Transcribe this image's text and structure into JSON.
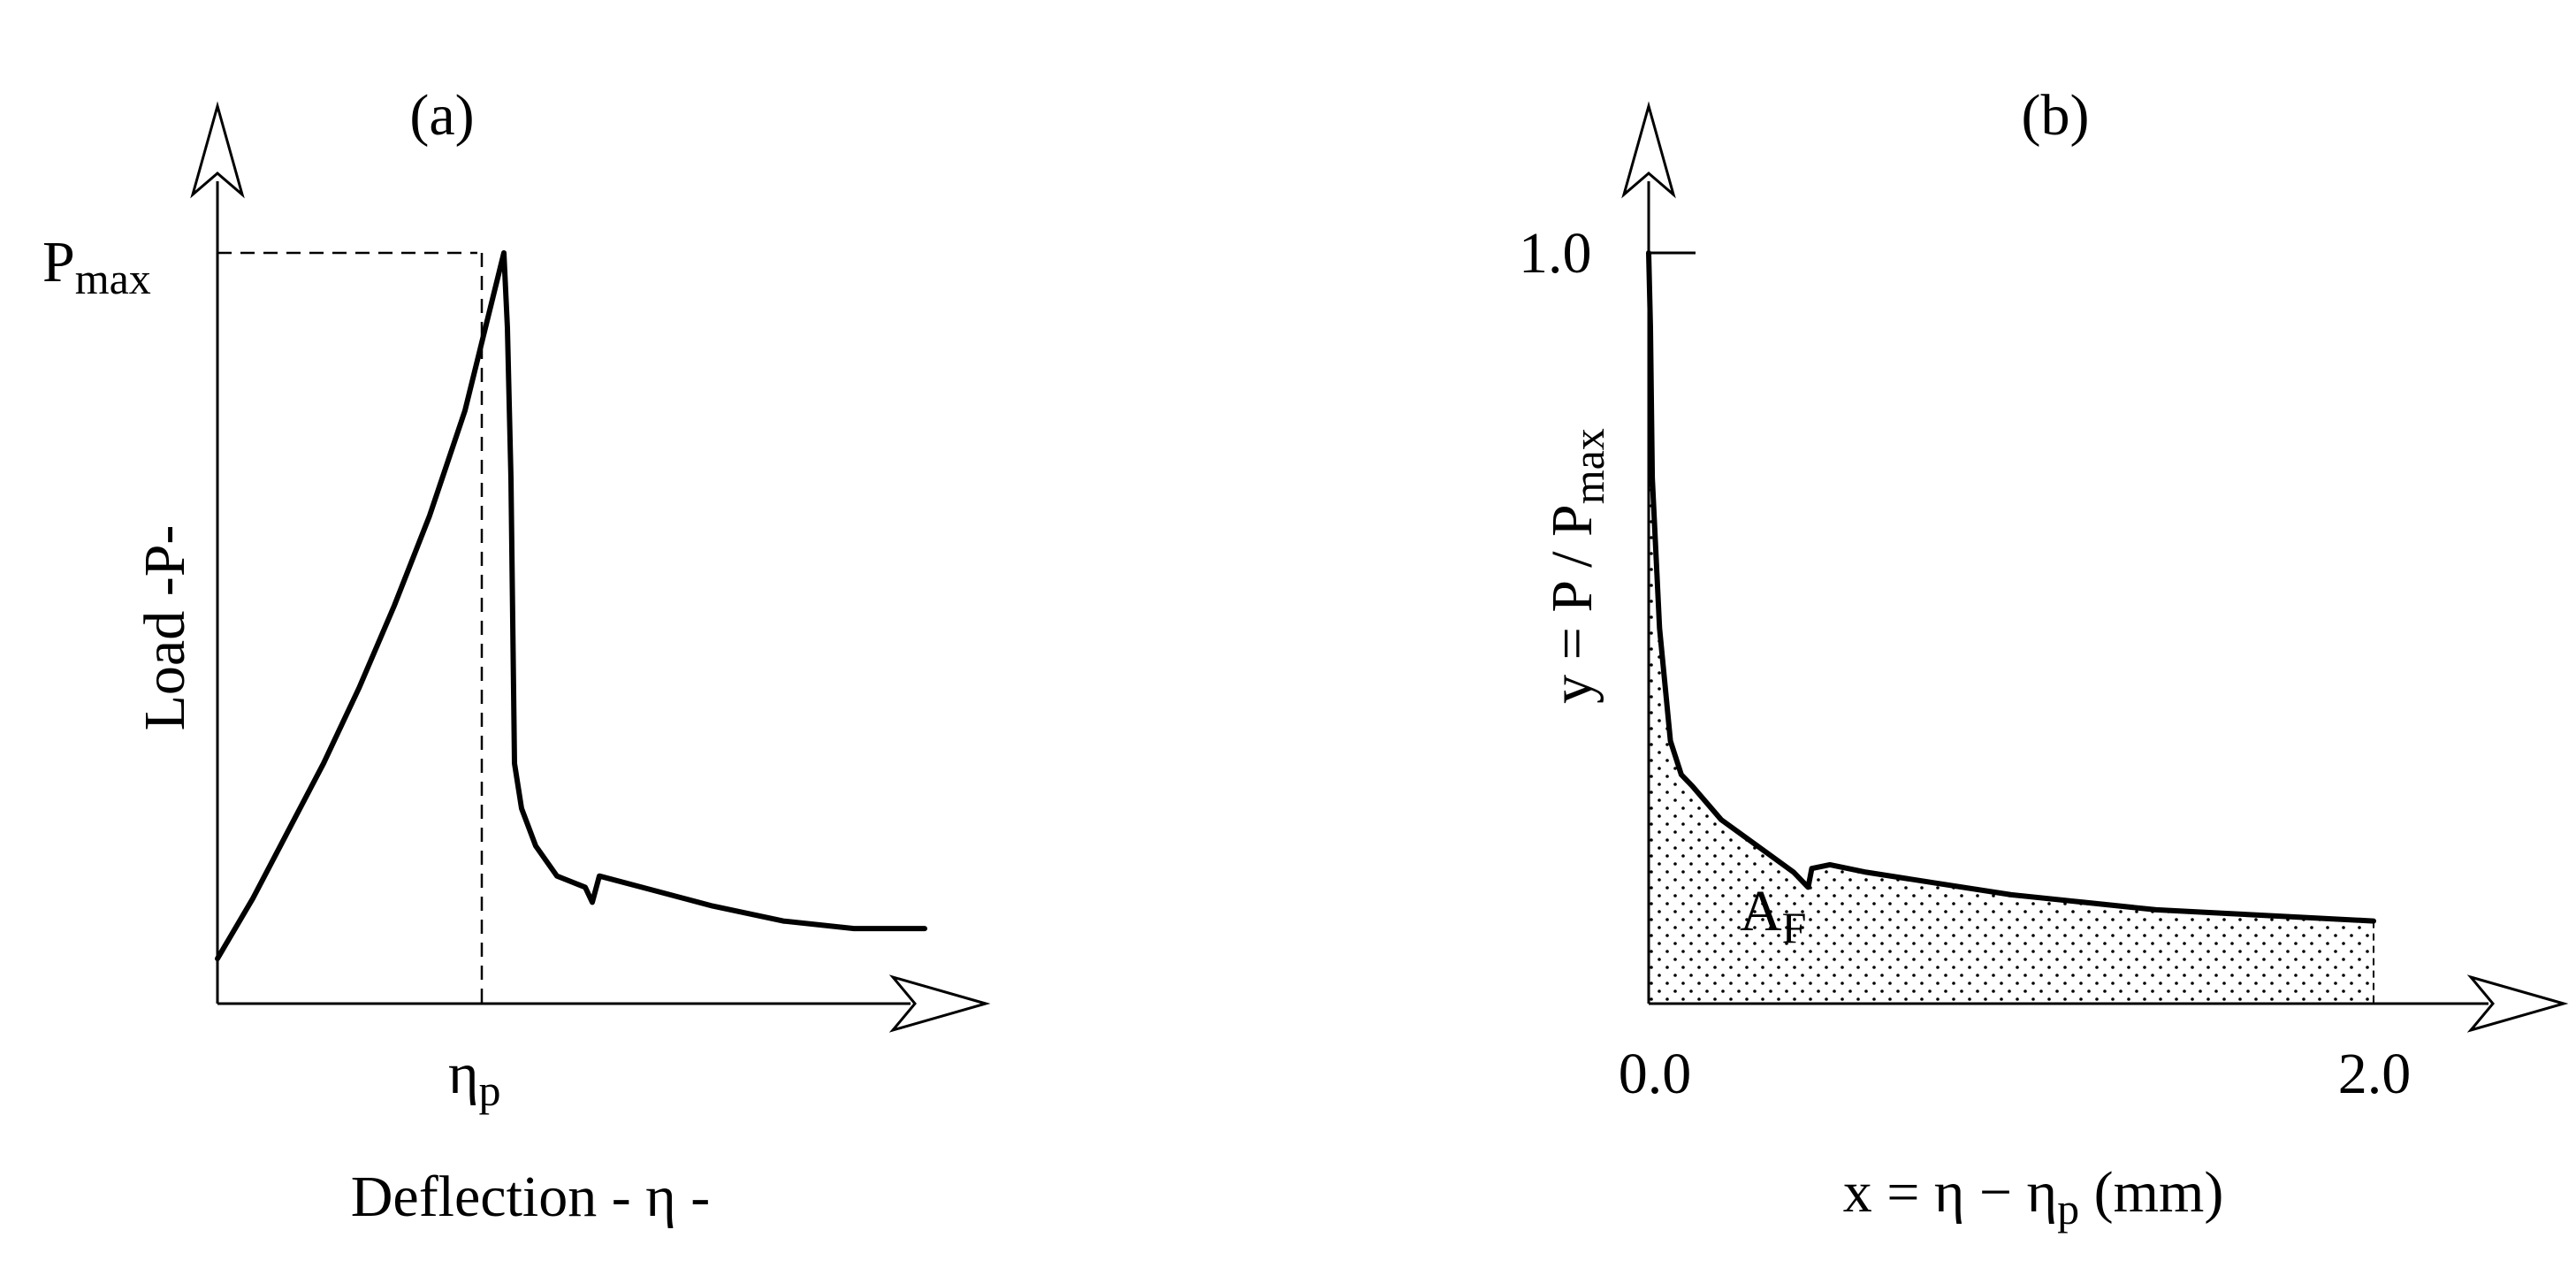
{
  "chart_data": [
    {
      "type": "line",
      "panel_label": "(a)",
      "xlabel": "Deflection - η -",
      "ylabel": "Load -P-",
      "ymax_label_main": "P",
      "ymax_label_sub": "max",
      "xpeak_label_main": "η",
      "xpeak_label_sub": "p",
      "xlim": [
        0,
        1.0
      ],
      "ylim": [
        0,
        1.0
      ],
      "series": [
        {
          "x": [
            0.0,
            0.05,
            0.1,
            0.15,
            0.2,
            0.25,
            0.3,
            0.35,
            0.405,
            0.41,
            0.415,
            0.42,
            0.43,
            0.45,
            0.48,
            0.52,
            0.53,
            0.54,
            0.6,
            0.7,
            0.8,
            0.9,
            1.0
          ],
          "y": [
            0.06,
            0.14,
            0.23,
            0.32,
            0.42,
            0.53,
            0.65,
            0.79,
            1.0,
            0.9,
            0.7,
            0.32,
            0.26,
            0.21,
            0.17,
            0.155,
            0.135,
            0.17,
            0.155,
            0.13,
            0.11,
            0.1,
            0.1
          ]
        }
      ]
    },
    {
      "type": "area",
      "panel_label": "(b)",
      "xlabel_main": "x  = η − η",
      "xlabel_sub": "p",
      "xlabel_tail": " (mm)",
      "ylabel_main": "y = P / P",
      "ylabel_sub": "max",
      "area_label_main": "A",
      "area_label_sub": "F",
      "xticks": [
        {
          "value": 0.0,
          "label": "0.0"
        },
        {
          "value": 2.0,
          "label": "2.0"
        }
      ],
      "yticks": [
        {
          "value": 1.0,
          "label": "1.0"
        }
      ],
      "xlim": [
        0,
        2.0
      ],
      "ylim": [
        0,
        1.0
      ],
      "series": [
        {
          "x": [
            0.0,
            0.005,
            0.01,
            0.03,
            0.06,
            0.09,
            0.12,
            0.2,
            0.3,
            0.4,
            0.44,
            0.45,
            0.5,
            0.6,
            0.8,
            1.0,
            1.2,
            1.4,
            1.6,
            1.8,
            2.0
          ],
          "y": [
            1.0,
            0.9,
            0.7,
            0.5,
            0.35,
            0.305,
            0.29,
            0.245,
            0.21,
            0.175,
            0.155,
            0.18,
            0.185,
            0.175,
            0.16,
            0.145,
            0.135,
            0.125,
            0.12,
            0.115,
            0.11
          ]
        }
      ]
    }
  ]
}
